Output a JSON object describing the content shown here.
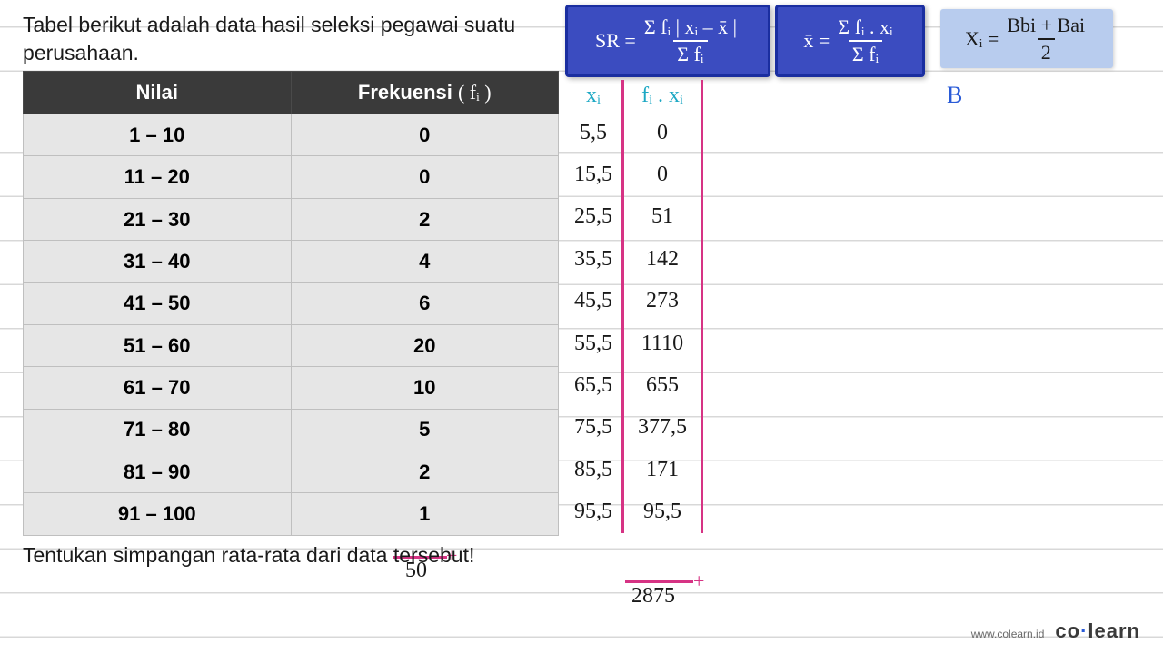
{
  "title_line1": "Tabel berikut adalah data hasil seleksi pegawai suatu",
  "title_line2": "perusahaan.",
  "question": "Tentukan simpangan rata-rata dari data tersebut!",
  "table": {
    "headers": {
      "nilai": "Nilai",
      "frekuensi": "Frekuensi",
      "fi_symbol": "( fᵢ )"
    },
    "rows": [
      {
        "nilai": "1 – 10",
        "f": "0"
      },
      {
        "nilai": "11 – 20",
        "f": "0"
      },
      {
        "nilai": "21 – 30",
        "f": "2"
      },
      {
        "nilai": "31 – 40",
        "f": "4"
      },
      {
        "nilai": "41 – 50",
        "f": "6"
      },
      {
        "nilai": "51 – 60",
        "f": "20"
      },
      {
        "nilai": "61 – 70",
        "f": "10"
      },
      {
        "nilai": "71 – 80",
        "f": "5"
      },
      {
        "nilai": "81 – 90",
        "f": "2"
      },
      {
        "nilai": "91 – 100",
        "f": "1"
      }
    ],
    "sum_f": "50"
  },
  "formulas": {
    "sr": {
      "lhs": "SR =",
      "num": "Σ fᵢ | xᵢ – x̄ |",
      "den": "Σ fᵢ"
    },
    "xbar": {
      "lhs": "x̄ =",
      "num": "Σ fᵢ . xᵢ",
      "den": "Σ fᵢ"
    },
    "xi": {
      "lhs": "Xᵢ =",
      "num": "Bbi + Bai",
      "den": "2"
    }
  },
  "calc": {
    "headers": {
      "xi": "xᵢ",
      "fixi": "fᵢ . xᵢ"
    },
    "rows": [
      {
        "xi": "5,5",
        "fixi": "0"
      },
      {
        "xi": "15,5",
        "fixi": "0"
      },
      {
        "xi": "25,5",
        "fixi": "51"
      },
      {
        "xi": "35,5",
        "fixi": "142"
      },
      {
        "xi": "45,5",
        "fixi": "273"
      },
      {
        "xi": "55,5",
        "fixi": "1110"
      },
      {
        "xi": "65,5",
        "fixi": "655"
      },
      {
        "xi": "75,5",
        "fixi": "377,5"
      },
      {
        "xi": "85,5",
        "fixi": "171"
      },
      {
        "xi": "95,5",
        "fixi": "95,5"
      }
    ],
    "sum_fixi": "2875"
  },
  "label_B": "B",
  "plus": "+",
  "footer": {
    "url": "www.colearn.id",
    "logo1": "co",
    "logo_dot": "·",
    "logo2": "learn"
  }
}
